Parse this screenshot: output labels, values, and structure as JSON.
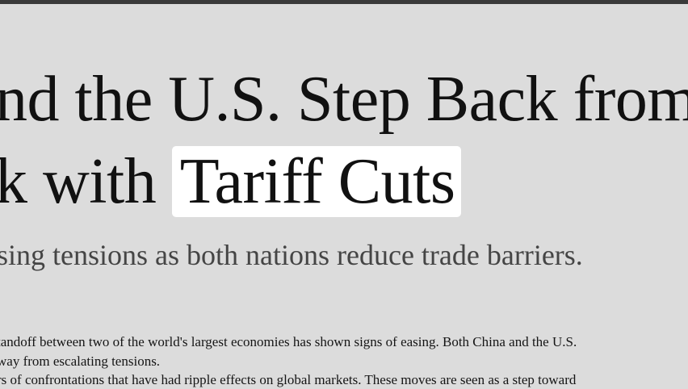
{
  "article": {
    "title_lines": [
      "nd the U.S. Step Back from",
      "k with"
    ],
    "title_highlight": "Tariff Cuts",
    "subtitle": "sing tensions as both nations reduce trade barriers.",
    "body_lines": [
      "tandoff between two of the world's largest economies has shown signs of easing. Both China and the U.S.",
      "way from escalating tensions.",
      "rs of confrontations that have had ripple effects on global markets. These moves are seen as a step toward"
    ]
  }
}
